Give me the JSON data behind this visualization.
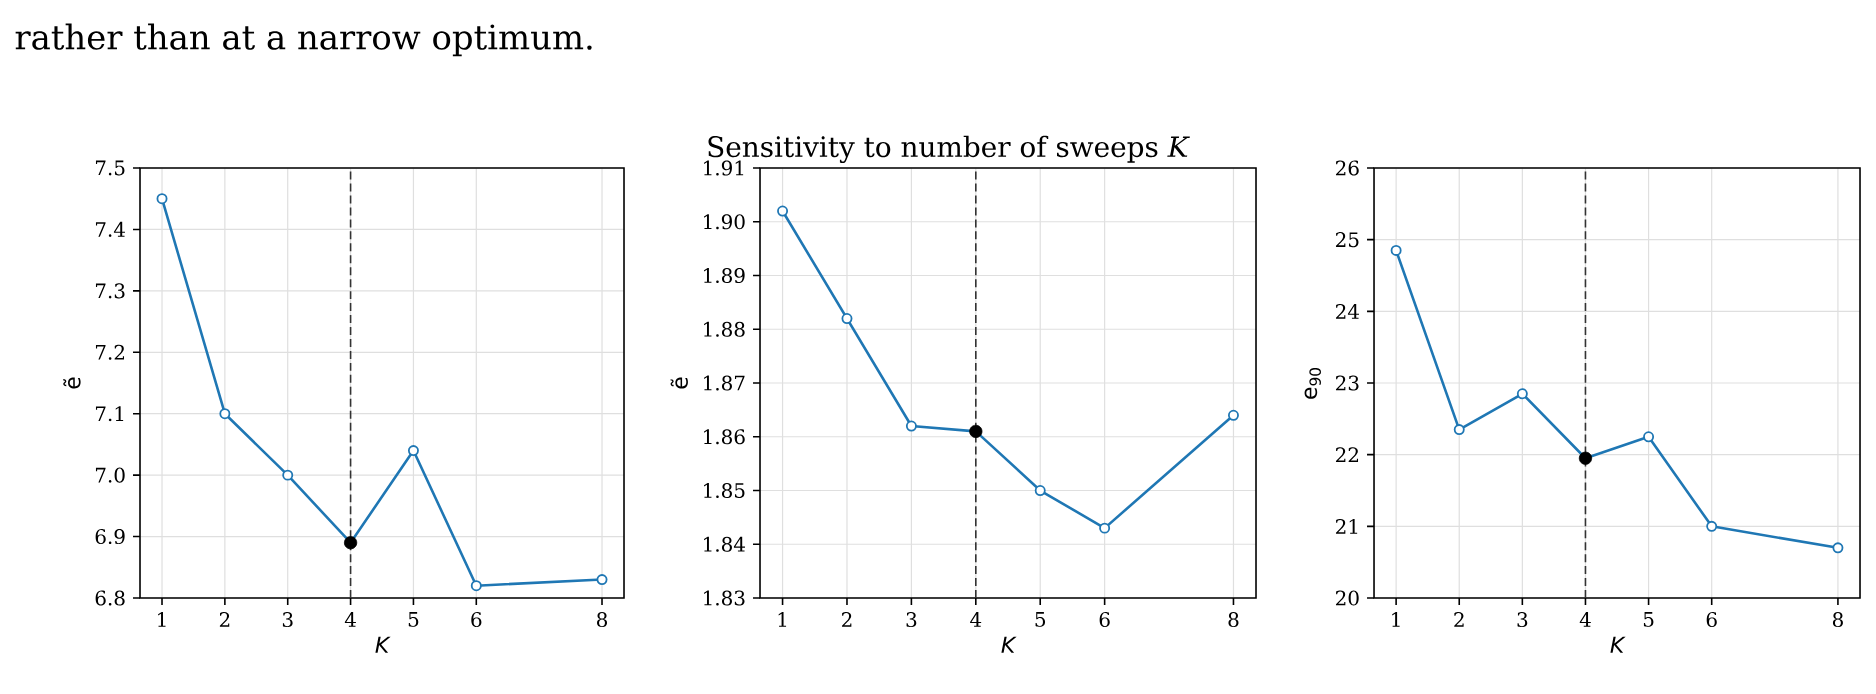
{
  "chart_data": [
    {
      "type": "line",
      "xlabel": "K",
      "ylabel": "ẽ",
      "annotations": [
        {
          "text": "rather than at a narrow optimum."
        }
      ],
      "x": [
        1,
        2,
        3,
        4,
        5,
        6,
        8
      ],
      "series": [
        {
          "type": "line",
          "color": "#1f77b4",
          "values": [
            7.45,
            7.1,
            7.0,
            6.89,
            7.04,
            6.82,
            6.83
          ]
        },
        {
          "type": "scatter",
          "color": "#000000",
          "values": [
            null,
            null,
            null,
            6.89,
            null,
            null,
            null
          ]
        }
      ],
      "xlim": [
        0.65,
        8.35
      ],
      "xticks": [
        1,
        2,
        3,
        4,
        5,
        6,
        8
      ],
      "ylim": [
        6.8,
        7.5
      ],
      "yticks": [
        6.8,
        6.9,
        {
          "value": 7,
          "label": "7.0"
        },
        7.1,
        7.2,
        7.3,
        7.4,
        7.5
      ],
      "ref_lines": [
        {
          "axis": "x",
          "value": 4,
          "color": "#333333",
          "line_style": "dashed"
        }
      ],
      "grid": true,
      "marker": "circle"
    },
    {
      "type": "line",
      "title": "Sensitivity to number of sweeps *K*",
      "xlabel": "K",
      "ylabel": "ẽ",
      "x": [
        1,
        2,
        3,
        4,
        5,
        6,
        8
      ],
      "series": [
        {
          "type": "line",
          "color": "#1f77b4",
          "values": [
            1.902,
            1.882,
            1.862,
            1.861,
            1.85,
            1.843,
            1.864
          ]
        },
        {
          "type": "scatter",
          "color": "#000000",
          "values": [
            null,
            null,
            null,
            1.861,
            null,
            null,
            null
          ]
        }
      ],
      "xlim": [
        0.65,
        8.35
      ],
      "xticks": [
        1,
        2,
        3,
        4,
        5,
        6,
        8
      ],
      "ylim": [
        1.83,
        1.91
      ],
      "yticks": [
        1.83,
        1.84,
        1.85,
        1.86,
        1.87,
        1.88,
        1.89,
        {
          "value": 1.9,
          "label": "1.90"
        },
        1.91
      ],
      "ref_lines": [
        {
          "axis": "x",
          "value": 4,
          "color": "#333333",
          "line_style": "dashed"
        }
      ],
      "grid": true,
      "marker": "circle"
    },
    {
      "type": "line",
      "xlabel": "K",
      "ylabel": "e$_{90}$",
      "x": [
        1,
        2,
        3,
        4,
        5,
        6,
        8
      ],
      "series": [
        {
          "type": "line",
          "color": "#1f77b4",
          "values": [
            24.85,
            22.35,
            22.85,
            21.95,
            22.25,
            21.0,
            20.7
          ]
        },
        {
          "type": "scatter",
          "color": "#000000",
          "values": [
            null,
            null,
            null,
            21.95,
            null,
            null,
            null
          ]
        }
      ],
      "xlim": [
        0.65,
        8.35
      ],
      "xticks": [
        1,
        2,
        3,
        4,
        5,
        6,
        8
      ],
      "ylim": [
        20,
        26
      ],
      "yticks": [
        20,
        21,
        22,
        23,
        24,
        25,
        26
      ],
      "ref_lines": [
        {
          "axis": "x",
          "value": 4,
          "color": "#333333",
          "line_style": "dashed"
        }
      ],
      "grid": true,
      "marker": "circle"
    }
  ]
}
